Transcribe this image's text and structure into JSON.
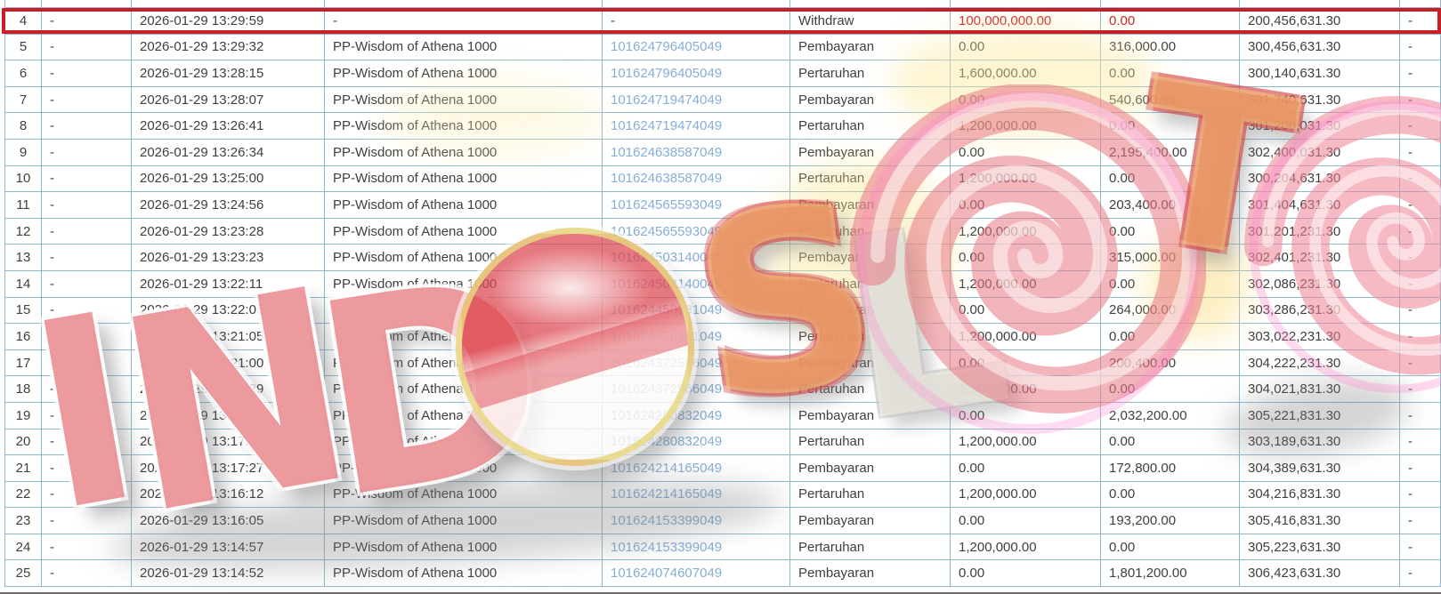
{
  "watermark": {
    "brand": "INDOSLOTO",
    "letters": {
      "i": "I",
      "n": "N",
      "d": "D",
      "s": "S",
      "l": "L",
      "t": "T"
    }
  },
  "colors": {
    "table_border": "#8fb9cf",
    "link_blue": "#85aed6",
    "alert_red": "#cc2222",
    "highlight_border": "#c81e25",
    "text": "#3f3f3f",
    "watermark_red": "#e0565e",
    "watermark_yellow": "#f7c476",
    "watermark_pink": "#ec8f9b"
  },
  "table": {
    "rows": [
      {
        "no": "4",
        "c2": "-",
        "datetime": "2026-01-29 13:29:59",
        "game": "-",
        "ref": "-",
        "type": "Withdraw",
        "debit": "100,000,000.00",
        "credit": "0.00",
        "balance": "200,456,631.30",
        "c10": "-",
        "highlight": true
      },
      {
        "no": "5",
        "c2": "-",
        "datetime": "2026-01-29 13:29:32",
        "game": "PP-Wisdom of Athena 1000",
        "ref": "101624796405049",
        "type": "Pembayaran",
        "debit": "0.00",
        "credit": "316,000.00",
        "balance": "300,456,631.30",
        "c10": "-",
        "highlight": false
      },
      {
        "no": "6",
        "c2": "-",
        "datetime": "2026-01-29 13:28:15",
        "game": "PP-Wisdom of Athena 1000",
        "ref": "101624796405049",
        "type": "Pertaruhan",
        "debit": "1,600,000.00",
        "credit": "0.00",
        "balance": "300,140,631.30",
        "c10": "-",
        "highlight": false
      },
      {
        "no": "7",
        "c2": "-",
        "datetime": "2026-01-29 13:28:07",
        "game": "PP-Wisdom of Athena 1000",
        "ref": "101624719474049",
        "type": "Pembayaran",
        "debit": "0.00",
        "credit": "540,600.00",
        "balance": "301,740,631.30",
        "c10": "-",
        "highlight": false
      },
      {
        "no": "8",
        "c2": "-",
        "datetime": "2026-01-29 13:26:41",
        "game": "PP-Wisdom of Athena 1000",
        "ref": "101624719474049",
        "type": "Pertaruhan",
        "debit": "1,200,000.00",
        "credit": "0.00",
        "balance": "301,200,031.30",
        "c10": "-",
        "highlight": false
      },
      {
        "no": "9",
        "c2": "-",
        "datetime": "2026-01-29 13:26:34",
        "game": "PP-Wisdom of Athena 1000",
        "ref": "101624638587049",
        "type": "Pembayaran",
        "debit": "0.00",
        "credit": "2,195,400.00",
        "balance": "302,400,031.30",
        "c10": "-",
        "highlight": false
      },
      {
        "no": "10",
        "c2": "-",
        "datetime": "2026-01-29 13:25:00",
        "game": "PP-Wisdom of Athena 1000",
        "ref": "101624638587049",
        "type": "Pertaruhan",
        "debit": "1,200,000.00",
        "credit": "0.00",
        "balance": "300,204,631.30",
        "c10": "-",
        "highlight": false
      },
      {
        "no": "11",
        "c2": "-",
        "datetime": "2026-01-29 13:24:56",
        "game": "PP-Wisdom of Athena 1000",
        "ref": "101624565593049",
        "type": "Pembayaran",
        "debit": "0.00",
        "credit": "203,400.00",
        "balance": "301,404,631.30",
        "c10": "-",
        "highlight": false
      },
      {
        "no": "12",
        "c2": "-",
        "datetime": "2026-01-29 13:23:28",
        "game": "PP-Wisdom of Athena 1000",
        "ref": "101624565593049",
        "type": "Pertaruhan",
        "debit": "1,200,000.00",
        "credit": "0.00",
        "balance": "301,201,231.30",
        "c10": "-",
        "highlight": false
      },
      {
        "no": "13",
        "c2": "-",
        "datetime": "2026-01-29 13:23:23",
        "game": "PP-Wisdom of Athena 1000",
        "ref": "101624503140049",
        "type": "Pembayaran",
        "debit": "0.00",
        "credit": "315,000.00",
        "balance": "302,401,231.30",
        "c10": "-",
        "highlight": false
      },
      {
        "no": "14",
        "c2": "-",
        "datetime": "2026-01-29 13:22:11",
        "game": "PP-Wisdom of Athena 1000",
        "ref": "101624503140049",
        "type": "Pertaruhan",
        "debit": "1,200,000.00",
        "credit": "0.00",
        "balance": "302,086,231.30",
        "c10": "-",
        "highlight": false
      },
      {
        "no": "15",
        "c2": "-",
        "datetime": "2026-01-29 13:22:05",
        "game": "PP-Wisdom of Athena 1000",
        "ref": "101624450381049",
        "type": "Pembayaran",
        "debit": "0.00",
        "credit": "264,000.00",
        "balance": "303,286,231.30",
        "c10": "-",
        "highlight": false
      },
      {
        "no": "16",
        "c2": "-",
        "datetime": "2026-01-29 13:21:05",
        "game": "PP-Wisdom of Athena 1000",
        "ref": "101624450381049",
        "type": "Pertaruhan",
        "debit": "1,200,000.00",
        "credit": "0.00",
        "balance": "303,022,231.30",
        "c10": "-",
        "highlight": false
      },
      {
        "no": "17",
        "c2": "-",
        "datetime": "2026-01-29 13:21:00",
        "game": "PP-Wisdom of Athena 1000",
        "ref": "101624372566049",
        "type": "Pembayaran",
        "debit": "0.00",
        "credit": "200,400.00",
        "balance": "304,222,231.30",
        "c10": "-",
        "highlight": false
      },
      {
        "no": "18",
        "c2": "-",
        "datetime": "2026-01-29 13:19:29",
        "game": "PP-Wisdom of Athena 1000",
        "ref": "101624372566049",
        "type": "Pertaruhan",
        "debit": "1,200,000.00",
        "credit": "0.00",
        "balance": "304,021,831.30",
        "c10": "-",
        "highlight": false
      },
      {
        "no": "19",
        "c2": "-",
        "datetime": "2026-01-29 13:19:24",
        "game": "PP-Wisdom of Athena 1000",
        "ref": "101624280832049",
        "type": "Pembayaran",
        "debit": "0.00",
        "credit": "2,032,200.00",
        "balance": "305,221,831.30",
        "c10": "-",
        "highlight": false
      },
      {
        "no": "20",
        "c2": "-",
        "datetime": "2026-01-29 13:17:35",
        "game": "PP-Wisdom of Athena 1000",
        "ref": "101624280832049",
        "type": "Pertaruhan",
        "debit": "1,200,000.00",
        "credit": "0.00",
        "balance": "303,189,631.30",
        "c10": "-",
        "highlight": false
      },
      {
        "no": "21",
        "c2": "-",
        "datetime": "2026-01-29 13:17:27",
        "game": "PP-Wisdom of Athena 1000",
        "ref": "101624214165049",
        "type": "Pembayaran",
        "debit": "0.00",
        "credit": "172,800.00",
        "balance": "304,389,631.30",
        "c10": "-",
        "highlight": false
      },
      {
        "no": "22",
        "c2": "-",
        "datetime": "2026-01-29 13:16:12",
        "game": "PP-Wisdom of Athena 1000",
        "ref": "101624214165049",
        "type": "Pertaruhan",
        "debit": "1,200,000.00",
        "credit": "0.00",
        "balance": "304,216,831.30",
        "c10": "-",
        "highlight": false
      },
      {
        "no": "23",
        "c2": "-",
        "datetime": "2026-01-29 13:16:05",
        "game": "PP-Wisdom of Athena 1000",
        "ref": "101624153399049",
        "type": "Pembayaran",
        "debit": "0.00",
        "credit": "193,200.00",
        "balance": "305,416,831.30",
        "c10": "-",
        "highlight": false
      },
      {
        "no": "24",
        "c2": "-",
        "datetime": "2026-01-29 13:14:57",
        "game": "PP-Wisdom of Athena 1000",
        "ref": "101624153399049",
        "type": "Pertaruhan",
        "debit": "1,200,000.00",
        "credit": "0.00",
        "balance": "305,223,631.30",
        "c10": "-",
        "highlight": false
      },
      {
        "no": "25",
        "c2": "-",
        "datetime": "2026-01-29 13:14:52",
        "game": "PP-Wisdom of Athena 1000",
        "ref": "101624074607049",
        "type": "Pembayaran",
        "debit": "0.00",
        "credit": "1,801,200.00",
        "balance": "306,423,631.30",
        "c10": "-",
        "highlight": false
      }
    ]
  }
}
